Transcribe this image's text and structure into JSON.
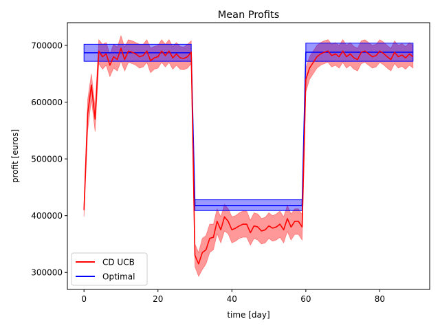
{
  "chart_data": {
    "type": "line",
    "title": "Mean Profits",
    "xlabel": "time [day]",
    "ylabel": "profit [euros]",
    "xlim": [
      -4.5,
      93.5
    ],
    "ylim": [
      270000,
      740000
    ],
    "xticks": [
      0,
      20,
      40,
      60,
      80
    ],
    "yticks": [
      300000,
      400000,
      500000,
      600000,
      700000
    ],
    "legend": "lower-left",
    "grid": false,
    "series": [
      {
        "name": "CD UCB",
        "color": "#ff0000",
        "band_color": "#ff0000",
        "x": [
          0,
          1,
          2,
          3,
          4,
          5,
          6,
          7,
          8,
          9,
          10,
          11,
          12,
          13,
          14,
          15,
          16,
          17,
          18,
          19,
          20,
          21,
          22,
          23,
          24,
          25,
          26,
          27,
          28,
          29,
          30,
          31,
          32,
          33,
          34,
          35,
          36,
          37,
          38,
          39,
          40,
          41,
          42,
          43,
          44,
          45,
          46,
          47,
          48,
          49,
          50,
          51,
          52,
          53,
          54,
          55,
          56,
          57,
          58,
          59,
          60,
          61,
          62,
          63,
          64,
          65,
          66,
          67,
          68,
          69,
          70,
          71,
          72,
          73,
          74,
          75,
          76,
          77,
          78,
          79,
          80,
          81,
          82,
          83,
          84,
          85,
          86,
          87,
          88,
          89
        ],
        "y": [
          410000,
          580000,
          630000,
          570000,
          690000,
          680000,
          685000,
          665000,
          680000,
          675000,
          695000,
          675000,
          690000,
          688000,
          685000,
          680000,
          682000,
          690000,
          673000,
          678000,
          680000,
          690000,
          682000,
          690000,
          678000,
          685000,
          678000,
          677000,
          680000,
          688000,
          330000,
          315000,
          335000,
          340000,
          360000,
          362000,
          390000,
          375000,
          398000,
          390000,
          375000,
          378000,
          382000,
          385000,
          385000,
          370000,
          382000,
          380000,
          373000,
          375000,
          382000,
          378000,
          380000,
          385000,
          375000,
          395000,
          380000,
          390000,
          390000,
          380000,
          640000,
          660000,
          670000,
          680000,
          685000,
          688000,
          690000,
          682000,
          685000,
          680000,
          690000,
          680000,
          685000,
          678000,
          675000,
          688000,
          690000,
          685000,
          680000,
          682000,
          690000,
          686000,
          680000,
          675000,
          688000,
          680000,
          683000,
          678000,
          685000,
          680000
        ],
        "y_lower": [
          398000,
          550000,
          605000,
          548000,
          668000,
          658000,
          665000,
          645000,
          660000,
          655000,
          672000,
          655000,
          670000,
          668000,
          665000,
          660000,
          662000,
          670000,
          652000,
          658000,
          660000,
          670000,
          662000,
          670000,
          658000,
          665000,
          658000,
          657000,
          660000,
          668000,
          310000,
          293000,
          305000,
          315000,
          335000,
          340000,
          368000,
          352000,
          373000,
          368000,
          352000,
          355000,
          360000,
          362000,
          362000,
          348000,
          360000,
          357000,
          350000,
          352000,
          360000,
          355000,
          357000,
          362000,
          352000,
          372000,
          357000,
          367000,
          367000,
          357000,
          618000,
          640000,
          650000,
          660000,
          665000,
          668000,
          670000,
          662000,
          665000,
          660000,
          670000,
          660000,
          665000,
          658000,
          655000,
          668000,
          670000,
          665000,
          660000,
          662000,
          670000,
          666000,
          660000,
          655000,
          668000,
          660000,
          663000,
          658000,
          665000,
          660000
        ],
        "y_upper": [
          420000,
          605000,
          650000,
          590000,
          710000,
          702000,
          705000,
          685000,
          702000,
          697000,
          717000,
          697000,
          710000,
          708000,
          705000,
          702000,
          702000,
          710000,
          695000,
          698000,
          700000,
          710000,
          702000,
          710000,
          698000,
          705000,
          698000,
          697000,
          702000,
          708000,
          350000,
          335000,
          360000,
          365000,
          385000,
          385000,
          412000,
          398000,
          420000,
          412000,
          398000,
          400000,
          405000,
          408000,
          408000,
          392000,
          405000,
          403000,
          395000,
          397000,
          405000,
          400000,
          403000,
          408000,
          398000,
          418000,
          403000,
          412000,
          412000,
          402000,
          660000,
          680000,
          690000,
          700000,
          705000,
          708000,
          710000,
          702000,
          705000,
          700000,
          710000,
          700000,
          705000,
          698000,
          695000,
          708000,
          710000,
          705000,
          700000,
          702000,
          710000,
          706000,
          700000,
          695000,
          708000,
          700000,
          703000,
          698000,
          705000,
          700000
        ]
      },
      {
        "name": "Optimal",
        "color": "#0000ff",
        "band_color": "#0000ff",
        "segments": [
          {
            "x": [
              0,
              29
            ],
            "y": 687000,
            "band": [
              672000,
              702000
            ]
          },
          {
            "x": [
              30,
              59
            ],
            "y": 418000,
            "band": [
              409000,
              428000
            ]
          },
          {
            "x": [
              60,
              89
            ],
            "y": 688000,
            "band": [
              672000,
              704000
            ]
          }
        ]
      }
    ]
  }
}
